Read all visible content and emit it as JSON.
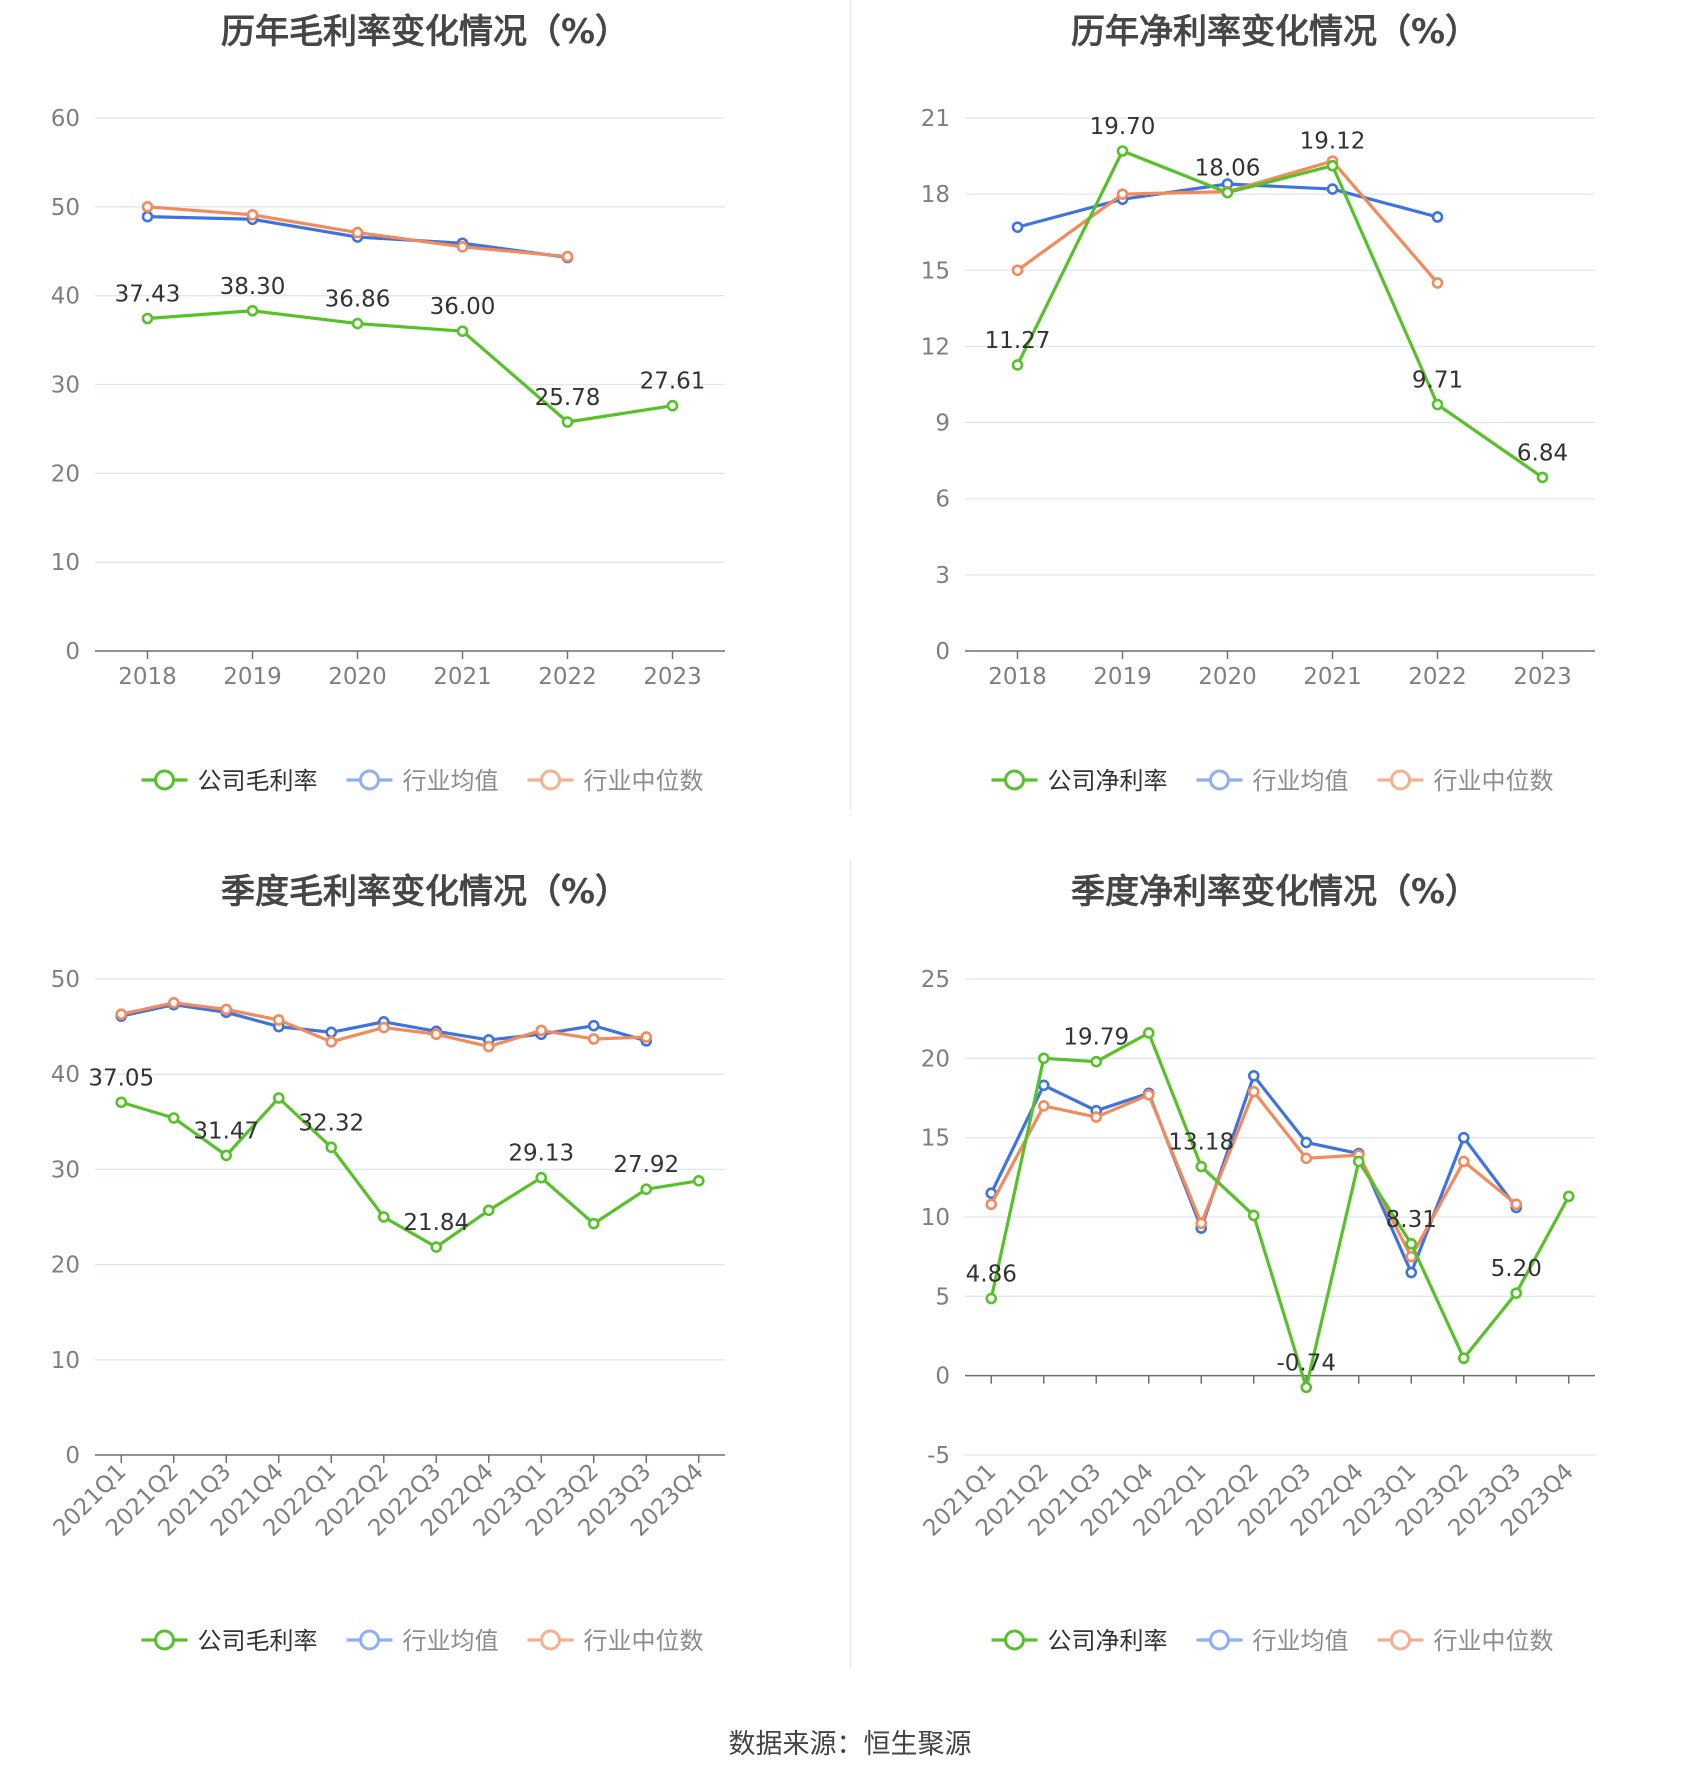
{
  "colors": {
    "company": "#57c12a",
    "industry_avg": "#3f74de",
    "industry_median": "#f28a5b"
  },
  "source": "数据来源：恒生聚源",
  "chart_data": [
    {
      "type": "line",
      "title": "历年毛利率变化情况（%）",
      "categories": [
        "2018",
        "2019",
        "2020",
        "2021",
        "2022",
        "2023"
      ],
      "ylim": [
        0,
        60
      ],
      "yticks": [
        0,
        10,
        20,
        30,
        40,
        50,
        60
      ],
      "grid": true,
      "legend_position": "bottom",
      "series": [
        {
          "name": "公司毛利率",
          "color": "#57c12a",
          "values": [
            37.43,
            38.3,
            36.86,
            36.0,
            25.78,
            27.61
          ],
          "labels": [
            "37.43",
            "38.30",
            "36.86",
            "36.00",
            "25.78",
            "27.61"
          ]
        },
        {
          "name": "行业均值",
          "color": "#3f74de",
          "values": [
            48.9,
            48.6,
            46.6,
            45.9,
            44.3,
            null
          ]
        },
        {
          "name": "行业中位数",
          "color": "#f28a5b",
          "values": [
            50.0,
            49.1,
            47.1,
            45.5,
            44.4,
            null
          ]
        }
      ]
    },
    {
      "type": "line",
      "title": "历年净利率变化情况（%）",
      "categories": [
        "2018",
        "2019",
        "2020",
        "2021",
        "2022",
        "2023"
      ],
      "ylim": [
        0,
        21
      ],
      "yticks": [
        0,
        3,
        6,
        9,
        12,
        15,
        18,
        21
      ],
      "grid": true,
      "legend_position": "bottom",
      "series": [
        {
          "name": "公司净利率",
          "color": "#57c12a",
          "values": [
            11.27,
            19.7,
            18.06,
            19.12,
            9.71,
            6.84
          ],
          "labels": [
            "11.27",
            "19.70",
            "18.06",
            "19.12",
            "9.71",
            "6.84"
          ]
        },
        {
          "name": "行业均值",
          "color": "#3f74de",
          "values": [
            16.7,
            17.8,
            18.4,
            18.2,
            17.1,
            null
          ]
        },
        {
          "name": "行业中位数",
          "color": "#f28a5b",
          "values": [
            15.0,
            18.0,
            18.1,
            19.3,
            14.5,
            null
          ]
        }
      ]
    },
    {
      "type": "line",
      "title": "季度毛利率变化情况（%）",
      "categories": [
        "2021Q1",
        "2021Q2",
        "2021Q3",
        "2021Q4",
        "2022Q1",
        "2022Q2",
        "2022Q3",
        "2022Q4",
        "2023Q1",
        "2023Q2",
        "2023Q3",
        "2023Q4"
      ],
      "ylim": [
        0,
        50
      ],
      "yticks": [
        0,
        10,
        20,
        30,
        40,
        50
      ],
      "grid": true,
      "legend_position": "bottom",
      "series": [
        {
          "name": "公司毛利率",
          "color": "#57c12a",
          "values": [
            37.05,
            35.4,
            31.47,
            37.5,
            32.32,
            25.0,
            21.84,
            25.7,
            29.13,
            24.3,
            27.92,
            28.8
          ],
          "labels": [
            "37.05",
            "",
            "31.47",
            "",
            "32.32",
            "",
            "21.84",
            "",
            "29.13",
            "",
            "27.92",
            ""
          ]
        },
        {
          "name": "行业均值",
          "color": "#3f74de",
          "values": [
            46.1,
            47.3,
            46.5,
            45.0,
            44.4,
            45.5,
            44.5,
            43.6,
            44.2,
            45.1,
            43.5,
            null
          ]
        },
        {
          "name": "行业中位数",
          "color": "#f28a5b",
          "values": [
            46.3,
            47.5,
            46.8,
            45.7,
            43.4,
            44.9,
            44.2,
            42.9,
            44.6,
            43.7,
            43.9,
            null
          ]
        }
      ]
    },
    {
      "type": "line",
      "title": "季度净利率变化情况（%）",
      "categories": [
        "2021Q1",
        "2021Q2",
        "2021Q3",
        "2021Q4",
        "2022Q1",
        "2022Q2",
        "2022Q3",
        "2022Q4",
        "2023Q1",
        "2023Q2",
        "2023Q3",
        "2023Q4"
      ],
      "ylim": [
        -5,
        25
      ],
      "yticks": [
        -5,
        0,
        5,
        10,
        15,
        20,
        25
      ],
      "grid": true,
      "legend_position": "bottom",
      "series": [
        {
          "name": "公司净利率",
          "color": "#57c12a",
          "values": [
            4.86,
            20.0,
            19.79,
            21.6,
            13.18,
            10.1,
            -0.74,
            13.5,
            8.31,
            1.1,
            5.2,
            11.3
          ],
          "labels": [
            "4.86",
            "",
            "19.79",
            "",
            "13.18",
            "",
            "-0.74",
            "",
            "8.31",
            "",
            "5.20",
            ""
          ]
        },
        {
          "name": "行业均值",
          "color": "#3f74de",
          "values": [
            11.5,
            18.3,
            16.7,
            17.8,
            9.3,
            18.9,
            14.7,
            14.0,
            6.5,
            15.0,
            10.6,
            null
          ]
        },
        {
          "name": "行业中位数",
          "color": "#f28a5b",
          "values": [
            10.8,
            17.0,
            16.3,
            17.7,
            9.6,
            17.9,
            13.7,
            13.9,
            7.5,
            13.5,
            10.8,
            null
          ]
        }
      ]
    }
  ]
}
